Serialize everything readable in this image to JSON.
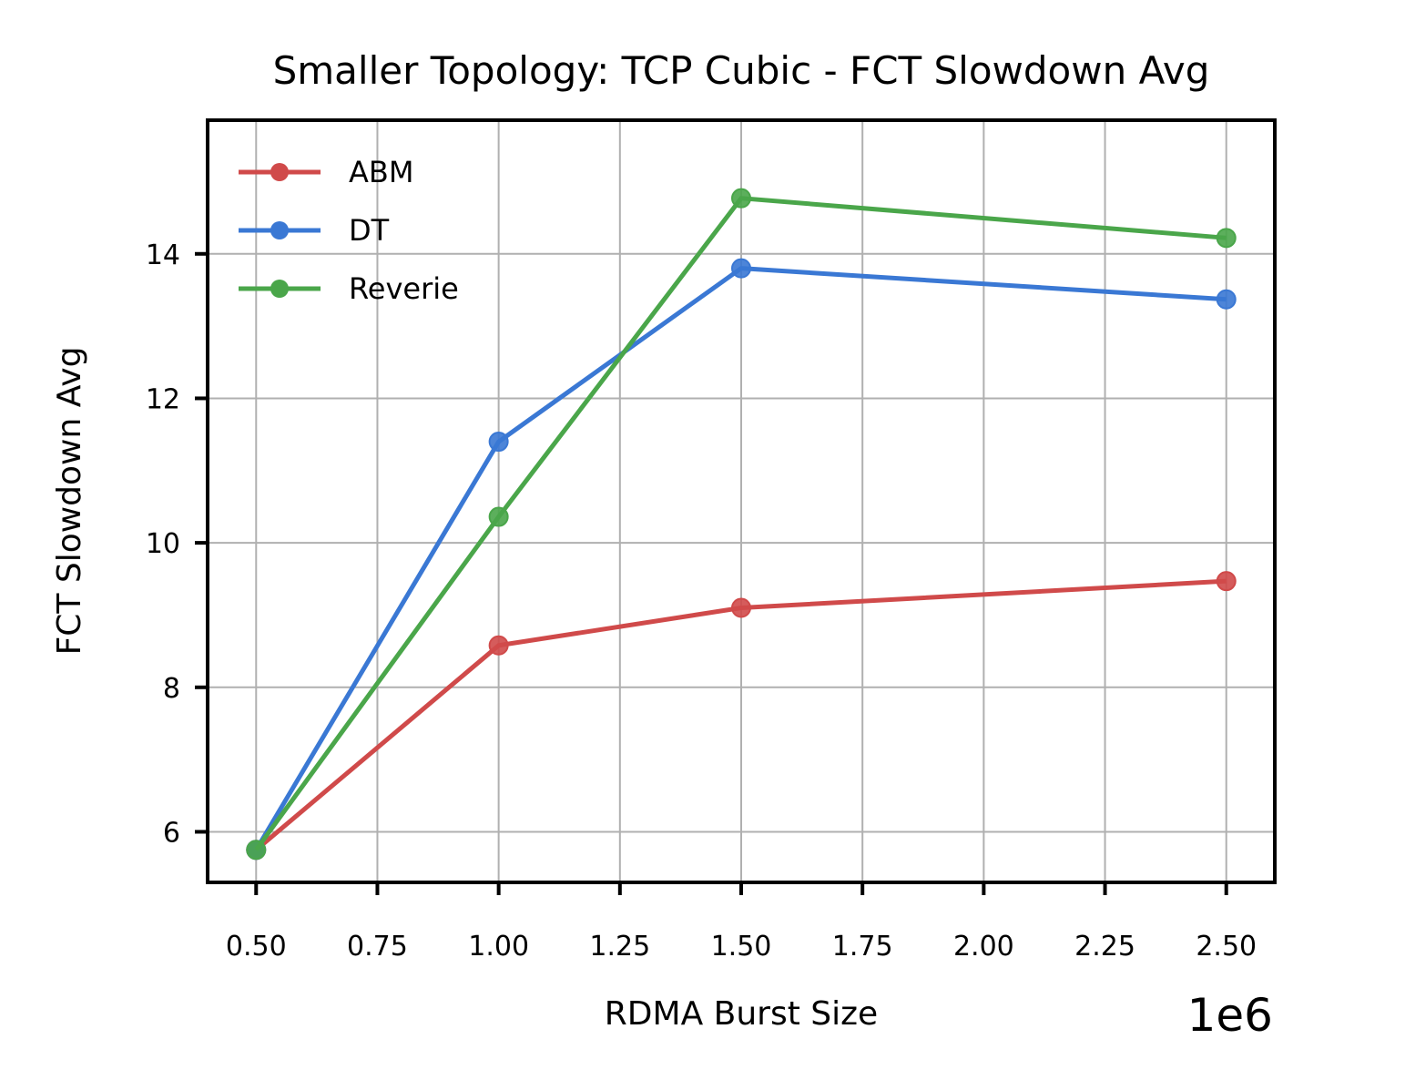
{
  "chart_data": {
    "type": "line",
    "title": "Smaller Topology: TCP Cubic - FCT Slowdown Avg",
    "xlabel": "RDMA Burst Size",
    "ylabel": "FCT Slowdown Avg",
    "x_offset_label": "1e6",
    "x": [
      0.5,
      1.0,
      1.5,
      2.5
    ],
    "xlim": [
      0.4,
      2.6
    ],
    "ylim": [
      5.3,
      15.85
    ],
    "xticks": [
      "0.50",
      "0.75",
      "1.00",
      "1.25",
      "1.50",
      "1.75",
      "2.00",
      "2.25",
      "2.50"
    ],
    "yticks": [
      "6",
      "8",
      "10",
      "12",
      "14"
    ],
    "grid": true,
    "legend_position": "top-left",
    "series": [
      {
        "name": "ABM",
        "color": "#d04a4a",
        "values": [
          5.75,
          8.58,
          9.1,
          9.47
        ]
      },
      {
        "name": "DT",
        "color": "#3a78d4",
        "values": [
          5.75,
          11.4,
          13.8,
          13.37
        ]
      },
      {
        "name": "Reverie",
        "color": "#4aa64a",
        "values": [
          5.75,
          10.36,
          14.77,
          14.22
        ]
      }
    ]
  }
}
